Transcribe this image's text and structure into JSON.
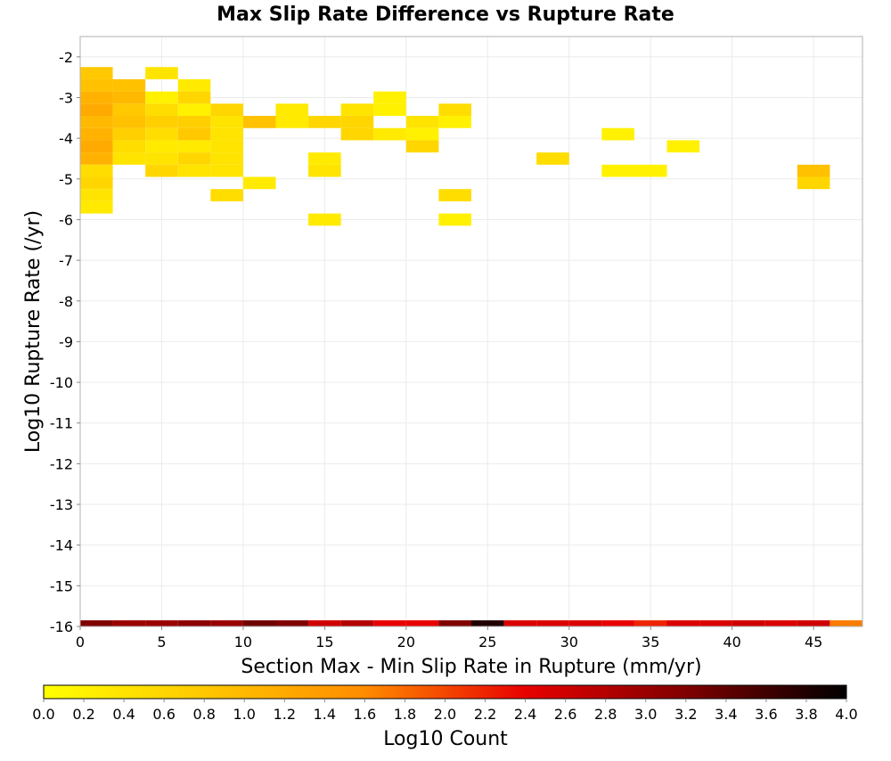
{
  "chart_data": {
    "type": "heatmap",
    "title": "Max Slip Rate Difference vs Rupture Rate",
    "xlabel": "Section Max - Min Slip Rate in Rupture (mm/yr)",
    "ylabel": "Log10 Rupture Rate (/yr)",
    "xlim": [
      0,
      48
    ],
    "ylim": [
      -16,
      -1.5
    ],
    "x_ticks": [
      0,
      5,
      10,
      15,
      20,
      25,
      30,
      35,
      40,
      45
    ],
    "y_ticks": [
      -2,
      -3,
      -4,
      -5,
      -6,
      -7,
      -8,
      -9,
      -10,
      -11,
      -12,
      -13,
      -14,
      -15,
      -16
    ],
    "grid": true,
    "bin_width": 2,
    "bin_height": 0.3,
    "colorbar": {
      "label": "Log10 Count",
      "min": 0.0,
      "max": 4.0,
      "ticks": [
        "0.0",
        "0.2",
        "0.4",
        "0.6",
        "0.8",
        "1.0",
        "1.2",
        "1.4",
        "1.6",
        "1.8",
        "2.0",
        "2.2",
        "2.4",
        "2.6",
        "2.8",
        "3.0",
        "3.2",
        "3.4",
        "3.6",
        "3.8",
        "4.0"
      ],
      "colors": [
        "#ffff00",
        "#ffc800",
        "#ff8c00",
        "#e80000",
        "#800000",
        "#000000"
      ]
    },
    "cells": [
      {
        "x": 0,
        "y": -2.4,
        "v": 0.8
      },
      {
        "x": 0,
        "y": -2.7,
        "v": 0.9
      },
      {
        "x": 0,
        "y": -3.0,
        "v": 1.1
      },
      {
        "x": 0,
        "y": -3.3,
        "v": 1.2
      },
      {
        "x": 0,
        "y": -3.6,
        "v": 1.0
      },
      {
        "x": 0,
        "y": -3.9,
        "v": 1.1
      },
      {
        "x": 0,
        "y": -4.2,
        "v": 1.2
      },
      {
        "x": 0,
        "y": -4.5,
        "v": 1.1
      },
      {
        "x": 0,
        "y": -4.8,
        "v": 0.5
      },
      {
        "x": 0,
        "y": -5.1,
        "v": 0.6
      },
      {
        "x": 0,
        "y": -5.4,
        "v": 0.4
      },
      {
        "x": 0,
        "y": -5.7,
        "v": 0.3
      },
      {
        "x": 2,
        "y": -2.7,
        "v": 0.9
      },
      {
        "x": 2,
        "y": -3.0,
        "v": 1.0
      },
      {
        "x": 2,
        "y": -3.3,
        "v": 0.8
      },
      {
        "x": 2,
        "y": -3.6,
        "v": 0.9
      },
      {
        "x": 2,
        "y": -3.9,
        "v": 0.7
      },
      {
        "x": 2,
        "y": -4.2,
        "v": 0.5
      },
      {
        "x": 2,
        "y": -4.5,
        "v": 0.4
      },
      {
        "x": 4,
        "y": -2.4,
        "v": 0.4
      },
      {
        "x": 4,
        "y": -3.0,
        "v": 0.2
      },
      {
        "x": 4,
        "y": -3.3,
        "v": 0.5
      },
      {
        "x": 4,
        "y": -3.6,
        "v": 0.7
      },
      {
        "x": 4,
        "y": -3.9,
        "v": 0.5
      },
      {
        "x": 4,
        "y": -4.2,
        "v": 0.3
      },
      {
        "x": 4,
        "y": -4.5,
        "v": 0.4
      },
      {
        "x": 4,
        "y": -4.8,
        "v": 0.6
      },
      {
        "x": 6,
        "y": -2.7,
        "v": 0.3
      },
      {
        "x": 6,
        "y": -3.0,
        "v": 0.6
      },
      {
        "x": 6,
        "y": -3.3,
        "v": 0.2
      },
      {
        "x": 6,
        "y": -3.6,
        "v": 0.7
      },
      {
        "x": 6,
        "y": -3.9,
        "v": 0.8
      },
      {
        "x": 6,
        "y": -4.2,
        "v": 0.3
      },
      {
        "x": 6,
        "y": -4.5,
        "v": 0.6
      },
      {
        "x": 6,
        "y": -4.8,
        "v": 0.4
      },
      {
        "x": 8,
        "y": -3.3,
        "v": 0.6
      },
      {
        "x": 8,
        "y": -3.6,
        "v": 0.4
      },
      {
        "x": 8,
        "y": -3.9,
        "v": 0.4
      },
      {
        "x": 8,
        "y": -4.2,
        "v": 0.4
      },
      {
        "x": 8,
        "y": -4.5,
        "v": 0.4
      },
      {
        "x": 8,
        "y": -4.8,
        "v": 0.4
      },
      {
        "x": 8,
        "y": -5.4,
        "v": 0.5
      },
      {
        "x": 10,
        "y": -3.6,
        "v": 0.9
      },
      {
        "x": 10,
        "y": -5.1,
        "v": 0.3
      },
      {
        "x": 12,
        "y": -3.3,
        "v": 0.3
      },
      {
        "x": 12,
        "y": -3.6,
        "v": 0.3
      },
      {
        "x": 14,
        "y": -3.6,
        "v": 0.6
      },
      {
        "x": 14,
        "y": -4.5,
        "v": 0.3
      },
      {
        "x": 14,
        "y": -4.8,
        "v": 0.4
      },
      {
        "x": 14,
        "y": -6.0,
        "v": 0.3
      },
      {
        "x": 16,
        "y": -3.3,
        "v": 0.4
      },
      {
        "x": 16,
        "y": -3.6,
        "v": 0.6
      },
      {
        "x": 16,
        "y": -3.9,
        "v": 0.6
      },
      {
        "x": 18,
        "y": -3.0,
        "v": 0.2
      },
      {
        "x": 18,
        "y": -3.3,
        "v": 0.2
      },
      {
        "x": 18,
        "y": -3.9,
        "v": 0.3
      },
      {
        "x": 20,
        "y": -3.6,
        "v": 0.4
      },
      {
        "x": 20,
        "y": -3.9,
        "v": 0.2
      },
      {
        "x": 20,
        "y": -4.2,
        "v": 0.6
      },
      {
        "x": 22,
        "y": -3.3,
        "v": 0.5
      },
      {
        "x": 22,
        "y": -3.6,
        "v": 0.2
      },
      {
        "x": 22,
        "y": -5.4,
        "v": 0.5
      },
      {
        "x": 22,
        "y": -6.0,
        "v": 0.2
      },
      {
        "x": 28,
        "y": -4.5,
        "v": 0.5
      },
      {
        "x": 32,
        "y": -3.9,
        "v": 0.2
      },
      {
        "x": 32,
        "y": -4.8,
        "v": 0.2
      },
      {
        "x": 34,
        "y": -4.8,
        "v": 0.2
      },
      {
        "x": 36,
        "y": -4.2,
        "v": 0.2
      },
      {
        "x": 44,
        "y": -4.8,
        "v": 0.9
      },
      {
        "x": 44,
        "y": -5.1,
        "v": 0.6
      }
    ],
    "bottom_row": {
      "y": -16.0,
      "x": [
        0,
        2,
        4,
        6,
        8,
        10,
        12,
        14,
        16,
        18,
        20,
        22,
        24,
        26,
        28,
        30,
        32,
        34,
        36,
        38,
        40,
        42,
        44,
        46
      ],
      "values": [
        3.2,
        3.0,
        3.0,
        3.1,
        3.0,
        3.3,
        3.2,
        2.6,
        2.8,
        2.4,
        2.4,
        3.2,
        3.8,
        2.5,
        2.5,
        2.5,
        2.4,
        2.2,
        2.5,
        2.5,
        2.6,
        2.5,
        2.6,
        1.7
      ]
    }
  }
}
